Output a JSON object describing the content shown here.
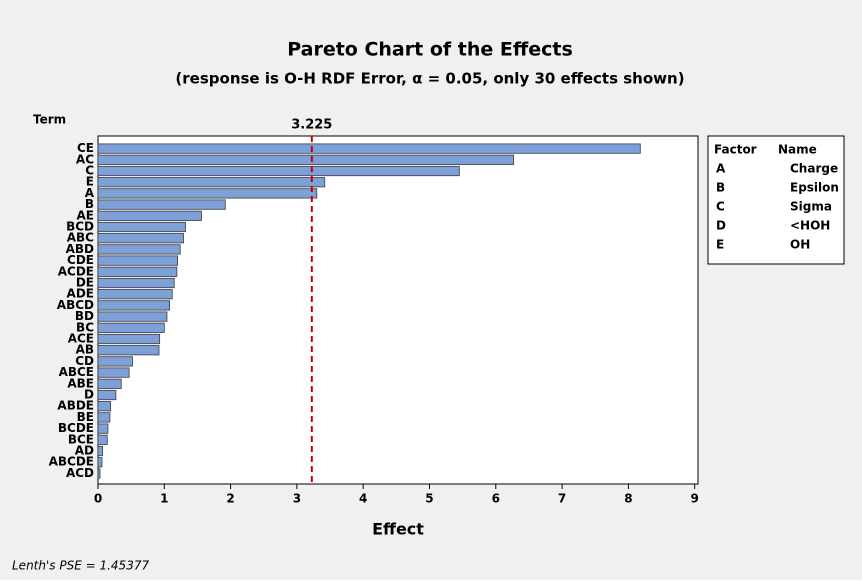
{
  "chart_data": {
    "type": "bar",
    "orientation": "horizontal",
    "title": "Pareto Chart of the Effects",
    "subtitle": "(response is O-H RDF Error, α = 0.05, only 30 effects shown)",
    "y_label": "Term",
    "x_label": "Effect",
    "categories": [
      "CE",
      "AC",
      "C",
      "E",
      "A",
      "B",
      "AE",
      "BCD",
      "ABC",
      "ABD",
      "CDE",
      "ACDE",
      "DE",
      "ADE",
      "ABCD",
      "BD",
      "BC",
      "ACE",
      "AB",
      "CD",
      "ABCE",
      "ABE",
      "D",
      "ABDE",
      "BE",
      "BCDE",
      "BCE",
      "AD",
      "ABCDE",
      "ACD"
    ],
    "values": [
      8.18,
      6.27,
      5.45,
      3.42,
      3.3,
      1.92,
      1.56,
      1.32,
      1.29,
      1.24,
      1.2,
      1.19,
      1.15,
      1.12,
      1.08,
      1.04,
      1.0,
      0.93,
      0.92,
      0.52,
      0.47,
      0.35,
      0.27,
      0.19,
      0.18,
      0.15,
      0.14,
      0.07,
      0.06,
      0.03
    ],
    "color": "#7da0d8",
    "xlim": [
      0,
      9.05
    ],
    "xticks": [
      0,
      1,
      2,
      3,
      4,
      5,
      6,
      7,
      8,
      9
    ],
    "reference_value": 3.225,
    "reference_color": "#c00000",
    "legend": {
      "headers": [
        "Factor",
        "Name"
      ],
      "rows": [
        [
          "A",
          "Charge"
        ],
        [
          "B",
          "Epsilon"
        ],
        [
          "C",
          "Sigma"
        ],
        [
          "D",
          "<HOH"
        ],
        [
          "E",
          "OH"
        ]
      ]
    },
    "footnote": "Lenth's PSE = 1.45377"
  }
}
